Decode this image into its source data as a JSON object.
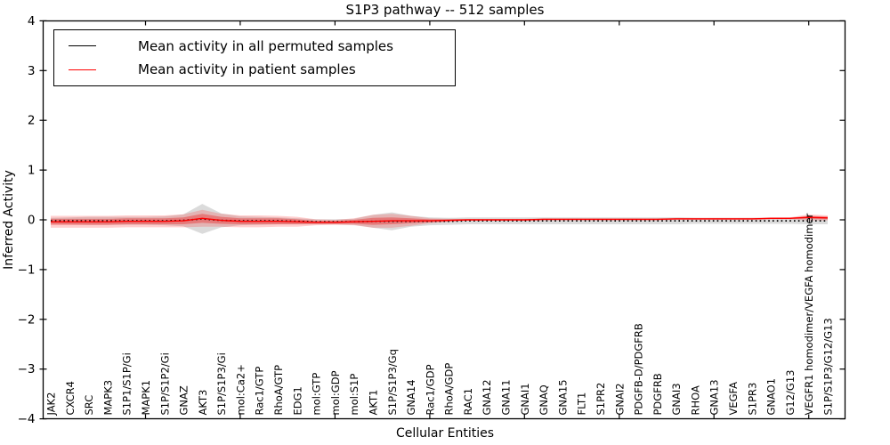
{
  "chart_data": {
    "type": "line",
    "title": "S1P3 pathway -- 512 samples",
    "xlabel": "Cellular Entities",
    "ylabel": "Inferred Activity",
    "ylim": [
      -4,
      4
    ],
    "yticks": [
      -4,
      -3,
      -2,
      -1,
      0,
      1,
      2,
      3,
      4
    ],
    "grid": false,
    "legend_position": "upper left",
    "frame_color": "#000000",
    "categories": [
      "JAK2",
      "CXCR4",
      "SRC",
      "MAPK3",
      "S1P1/S1P/Gi",
      "MAPK1",
      "S1P/S1P2/Gi",
      "GNAZ",
      "AKT3",
      "S1P/S1P3/Gi",
      "mol:Ca2+",
      "Rac1/GTP",
      "RhoA/GTP",
      "EDG1",
      "mol:GTP",
      "mol:GDP",
      "mol:S1P",
      "AKT1",
      "S1P/S1P3/Gq",
      "GNA14",
      "Rac1/GDP",
      "RhoA/GDP",
      "RAC1",
      "GNA12",
      "GNA11",
      "GNAI1",
      "GNAQ",
      "GNA15",
      "FLT1",
      "S1PR2",
      "GNAI2",
      "PDGFB-D/PDGFRB",
      "PDGFRB",
      "GNAI3",
      "RHOA",
      "GNA13",
      "VEGFA",
      "S1PR3",
      "GNAO1",
      "G12/G13",
      "VEGFR1 homodimer/VEGFA homodimer",
      "S1P/S1P3/G12/G13"
    ],
    "series": [
      {
        "name": "Mean activity in all permuted samples",
        "color": "#000000",
        "line_style": "dotted",
        "values": [
          -0.02,
          -0.02,
          -0.02,
          -0.02,
          -0.02,
          -0.02,
          -0.02,
          -0.01,
          0.02,
          -0.01,
          -0.02,
          -0.02,
          -0.02,
          -0.03,
          -0.04,
          -0.04,
          -0.04,
          -0.03,
          -0.03,
          -0.03,
          -0.03,
          -0.03,
          -0.02,
          -0.02,
          -0.02,
          -0.02,
          -0.02,
          -0.02,
          -0.02,
          -0.02,
          -0.02,
          -0.02,
          -0.02,
          -0.02,
          -0.02,
          -0.02,
          -0.02,
          -0.02,
          -0.02,
          -0.02,
          -0.02,
          -0.02
        ],
        "band_halfwidth": [
          0.06,
          0.07,
          0.08,
          0.08,
          0.08,
          0.08,
          0.09,
          0.12,
          0.3,
          0.14,
          0.09,
          0.08,
          0.07,
          0.06,
          0.05,
          0.05,
          0.06,
          0.13,
          0.18,
          0.11,
          0.08,
          0.07,
          0.07,
          0.07,
          0.07,
          0.07,
          0.07,
          0.07,
          0.07,
          0.07,
          0.07,
          0.07,
          0.07,
          0.07,
          0.06,
          0.06,
          0.06,
          0.06,
          0.06,
          0.06,
          0.07,
          0.07
        ],
        "band_color": "rgba(110,110,110,0.25)"
      },
      {
        "name": "Mean activity in patient samples",
        "color": "#ff0000",
        "line_style": "solid",
        "values": [
          -0.04,
          -0.04,
          -0.04,
          -0.04,
          -0.03,
          -0.03,
          -0.03,
          -0.02,
          0.03,
          -0.01,
          -0.03,
          -0.03,
          -0.03,
          -0.04,
          -0.05,
          -0.05,
          -0.04,
          -0.03,
          -0.02,
          -0.02,
          -0.02,
          -0.01,
          0.0,
          0.0,
          0.0,
          0.0,
          0.01,
          0.01,
          0.01,
          0.01,
          0.01,
          0.01,
          0.01,
          0.02,
          0.02,
          0.02,
          0.02,
          0.02,
          0.03,
          0.03,
          0.05,
          0.04
        ],
        "band_halfwidth": [
          0.12,
          0.12,
          0.12,
          0.12,
          0.12,
          0.12,
          0.12,
          0.13,
          0.17,
          0.13,
          0.12,
          0.12,
          0.11,
          0.1,
          0.06,
          0.05,
          0.07,
          0.13,
          0.14,
          0.1,
          0.05,
          0.03,
          0.02,
          0.02,
          0.02,
          0.02,
          0.02,
          0.02,
          0.02,
          0.02,
          0.02,
          0.02,
          0.02,
          0.02,
          0.02,
          0.02,
          0.02,
          0.02,
          0.02,
          0.02,
          0.06,
          0.05
        ],
        "band_inner_halfwidth": [
          0.06,
          0.06,
          0.06,
          0.06,
          0.06,
          0.06,
          0.06,
          0.07,
          0.09,
          0.07,
          0.06,
          0.06,
          0.06,
          0.05,
          0.03,
          0.03,
          0.04,
          0.07,
          0.07,
          0.05,
          0.03,
          0.02,
          0.01,
          0.01,
          0.01,
          0.01,
          0.01,
          0.01,
          0.01,
          0.01,
          0.01,
          0.01,
          0.01,
          0.01,
          0.01,
          0.01,
          0.01,
          0.01,
          0.01,
          0.01,
          0.03,
          0.03
        ],
        "band_color": "rgba(255,40,40,0.22)",
        "band_inner_color": "rgba(235,30,30,0.38)"
      }
    ],
    "x_major_tick_indices": [
      5,
      10,
      15,
      20,
      25,
      30,
      35,
      40
    ]
  },
  "legend": {
    "entries": [
      {
        "label": "Mean activity in all permuted samples",
        "color": "#000000"
      },
      {
        "label": "Mean activity in patient samples",
        "color": "#ff0000"
      }
    ]
  }
}
